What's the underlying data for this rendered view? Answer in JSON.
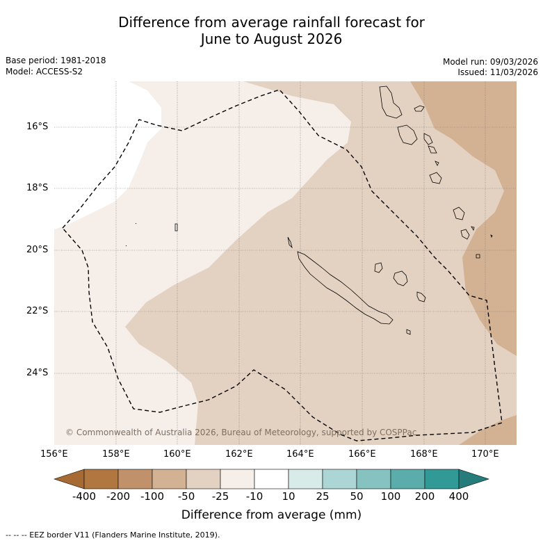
{
  "title": {
    "line1": "Difference from average rainfall forecast for",
    "line2": "June to August 2026"
  },
  "meta": {
    "base_period": "Base period: 1981-2018",
    "model": "Model: ACCESS-S2",
    "model_run": "Model run: 09/03/2026",
    "issued": "Issued: 11/03/2026"
  },
  "map": {
    "copyright": "© Commonwealth of Australia 2026, Bureau of Meteorology, supported by COSPPac",
    "lat_ticks": [
      "16°S",
      "18°S",
      "20°S",
      "22°S",
      "24°S"
    ],
    "lon_ticks": [
      "156°E",
      "158°E",
      "160°E",
      "162°E",
      "164°E",
      "166°E",
      "168°E",
      "170°E"
    ]
  },
  "colorbar": {
    "labels": [
      "-400",
      "-200",
      "-100",
      "-50",
      "-25",
      "-10",
      "10",
      "25",
      "50",
      "100",
      "200",
      "400"
    ],
    "colors": [
      "#a86a33",
      "#b07740",
      "#c0916a",
      "#d3b193",
      "#e3d1c1",
      "#f5eee9",
      "#ffffff",
      "#d8ebe9",
      "#acd6d5",
      "#86c2c0",
      "#5aadab",
      "#319996",
      "#257c7a"
    ],
    "title": "Difference from average (mm)"
  },
  "footnote": "--  --  -- EEZ border V11 (Flanders Marine Institute, 2019)."
}
